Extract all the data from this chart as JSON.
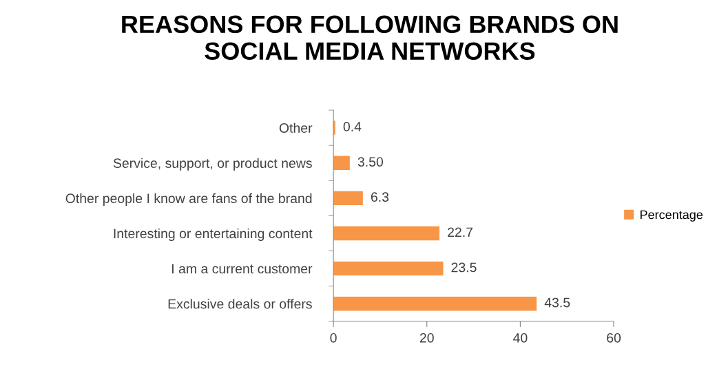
{
  "chart_data": {
    "type": "bar",
    "orientation": "horizontal",
    "title": "REASONS FOR FOLLOWING BRANDS ON\nSOCIAL MEDIA NETWORKS",
    "categories": [
      "Other",
      "Service, support, or product news",
      "Other people I know are fans of the brand",
      "Interesting or entertaining content",
      "I am a current customer",
      "Exclusive deals or offers"
    ],
    "series": [
      {
        "name": "Percentage",
        "color": "#f79646",
        "values": [
          0.4,
          3.5,
          6.3,
          22.7,
          23.5,
          43.5
        ],
        "value_labels": [
          "0.4",
          "3.50",
          "6.3",
          "22.7",
          "23.5",
          "43.5"
        ]
      }
    ],
    "xlim": [
      0,
      60
    ],
    "xticks": [
      0,
      20,
      40,
      60
    ],
    "grid": false,
    "legend": "right"
  }
}
